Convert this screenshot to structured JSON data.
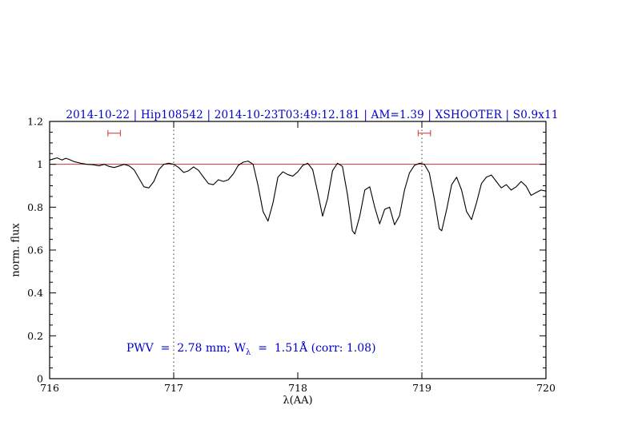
{
  "title": "2014-10-22 | Hip108542 | 2014-10-23T03:49:12.181 | AM=1.39 | XSHOOTER | S0.9x11",
  "annotation_parts": [
    "PWV  =  2.78 mm; W",
    "λ",
    "  =  1.51Å (corr: 1.08)"
  ],
  "colors": {
    "title": "#0000cc",
    "annotation": "#0000cc",
    "spectrum": "#000000",
    "frame": "#000000",
    "reference_line": "#cc3333",
    "marker": "#cc3333",
    "gridline": "#000000"
  },
  "chart_data": {
    "type": "line",
    "title": "2014-10-22 | Hip108542 | 2014-10-23T03:49:12.181 | AM=1.39 | XSHOOTER | S0.9x11",
    "xlabel": "λ(AA)",
    "ylabel": "norm. flux",
    "xlim": [
      716,
      720
    ],
    "ylim": [
      0,
      1.2
    ],
    "xtick_values": [
      716,
      717,
      718,
      719,
      720
    ],
    "xtick_labels": [
      "716",
      "717",
      "718",
      "719",
      "720"
    ],
    "ytick_values": [
      0,
      0.2,
      0.4,
      0.6,
      0.8,
      1,
      1.2
    ],
    "ytick_labels": [
      "0",
      "0.2",
      "0.4",
      "0.6",
      "0.8",
      "1",
      "1.2"
    ],
    "xminor_step": 0.1,
    "yminor_step": 0.05,
    "grid": "off",
    "legend": "none",
    "vlines": [
      717,
      719
    ],
    "hline": 1.0,
    "markers": [
      {
        "x": 716.52,
        "half_width": 0.05,
        "y": 1.145
      },
      {
        "x": 719.02,
        "half_width": 0.05,
        "y": 1.145
      }
    ],
    "series": [
      {
        "name": "normalized-telluric-spectrum",
        "points": [
          [
            716.0,
            1.02
          ],
          [
            716.03,
            1.025
          ],
          [
            716.06,
            1.03
          ],
          [
            716.1,
            1.02
          ],
          [
            716.13,
            1.028
          ],
          [
            716.16,
            1.022
          ],
          [
            716.2,
            1.012
          ],
          [
            716.25,
            1.005
          ],
          [
            716.3,
            1.0
          ],
          [
            716.35,
            0.998
          ],
          [
            716.4,
            0.993
          ],
          [
            716.44,
            1.0
          ],
          [
            716.48,
            0.99
          ],
          [
            716.52,
            0.985
          ],
          [
            716.56,
            0.992
          ],
          [
            716.6,
            1.0
          ],
          [
            716.64,
            0.993
          ],
          [
            716.68,
            0.975
          ],
          [
            716.72,
            0.935
          ],
          [
            716.76,
            0.895
          ],
          [
            716.8,
            0.89
          ],
          [
            716.84,
            0.92
          ],
          [
            716.88,
            0.975
          ],
          [
            716.92,
            1.0
          ],
          [
            716.96,
            1.005
          ],
          [
            717.0,
            1.0
          ],
          [
            717.04,
            0.985
          ],
          [
            717.08,
            0.962
          ],
          [
            717.12,
            0.97
          ],
          [
            717.16,
            0.988
          ],
          [
            717.2,
            0.972
          ],
          [
            717.24,
            0.94
          ],
          [
            717.28,
            0.91
          ],
          [
            717.32,
            0.905
          ],
          [
            717.36,
            0.928
          ],
          [
            717.4,
            0.92
          ],
          [
            717.44,
            0.928
          ],
          [
            717.48,
            0.955
          ],
          [
            717.52,
            0.995
          ],
          [
            717.56,
            1.01
          ],
          [
            717.6,
            1.015
          ],
          [
            717.64,
            1.0
          ],
          [
            717.68,
            0.9
          ],
          [
            717.72,
            0.78
          ],
          [
            717.76,
            0.735
          ],
          [
            717.8,
            0.82
          ],
          [
            717.84,
            0.94
          ],
          [
            717.88,
            0.965
          ],
          [
            717.92,
            0.952
          ],
          [
            717.96,
            0.945
          ],
          [
            718.0,
            0.965
          ],
          [
            718.04,
            0.995
          ],
          [
            718.08,
            1.005
          ],
          [
            718.12,
            0.975
          ],
          [
            718.16,
            0.87
          ],
          [
            718.2,
            0.758
          ],
          [
            718.24,
            0.84
          ],
          [
            718.28,
            0.97
          ],
          [
            718.32,
            1.005
          ],
          [
            718.36,
            0.99
          ],
          [
            718.4,
            0.86
          ],
          [
            718.44,
            0.69
          ],
          [
            718.46,
            0.675
          ],
          [
            718.5,
            0.76
          ],
          [
            718.54,
            0.88
          ],
          [
            718.58,
            0.895
          ],
          [
            718.62,
            0.8
          ],
          [
            718.66,
            0.722
          ],
          [
            718.7,
            0.79
          ],
          [
            718.74,
            0.8
          ],
          [
            718.78,
            0.718
          ],
          [
            718.82,
            0.76
          ],
          [
            718.86,
            0.88
          ],
          [
            718.9,
            0.96
          ],
          [
            718.94,
            0.995
          ],
          [
            718.98,
            1.005
          ],
          [
            719.02,
            1.0
          ],
          [
            719.06,
            0.96
          ],
          [
            719.1,
            0.84
          ],
          [
            719.14,
            0.7
          ],
          [
            719.16,
            0.69
          ],
          [
            719.2,
            0.79
          ],
          [
            719.24,
            0.905
          ],
          [
            719.28,
            0.94
          ],
          [
            719.32,
            0.88
          ],
          [
            719.36,
            0.78
          ],
          [
            719.4,
            0.742
          ],
          [
            719.44,
            0.82
          ],
          [
            719.48,
            0.91
          ],
          [
            719.52,
            0.94
          ],
          [
            719.56,
            0.95
          ],
          [
            719.6,
            0.92
          ],
          [
            719.64,
            0.89
          ],
          [
            719.68,
            0.905
          ],
          [
            719.72,
            0.88
          ],
          [
            719.76,
            0.895
          ],
          [
            719.8,
            0.92
          ],
          [
            719.84,
            0.898
          ],
          [
            719.88,
            0.855
          ],
          [
            719.92,
            0.868
          ],
          [
            719.96,
            0.88
          ],
          [
            720.0,
            0.875
          ]
        ]
      }
    ]
  }
}
